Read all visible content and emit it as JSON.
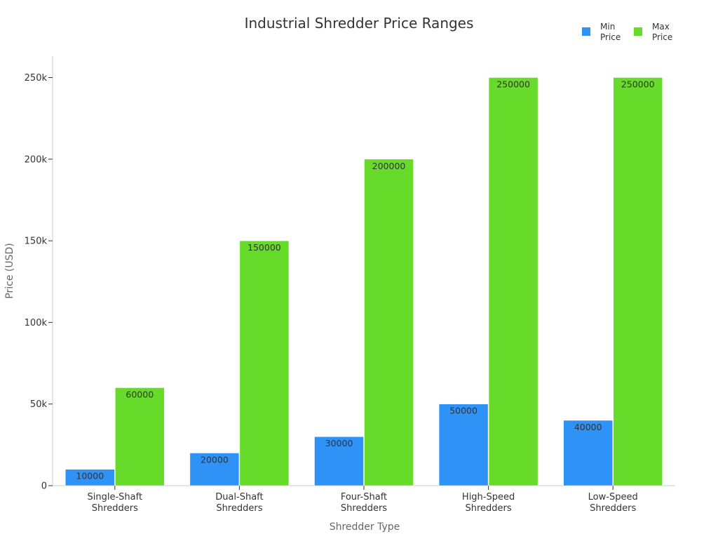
{
  "chart_data": {
    "type": "bar",
    "title": "Industrial Shredder Price Ranges",
    "xlabel": "Shredder Type",
    "ylabel": "Price (USD)",
    "categories": [
      [
        "Single-Shaft",
        "Shredders"
      ],
      [
        "Dual-Shaft",
        "Shredders"
      ],
      [
        "Four-Shaft",
        "Shredders"
      ],
      [
        "High-Speed",
        "Shredders"
      ],
      [
        "Low-Speed",
        "Shredders"
      ]
    ],
    "series": [
      {
        "name": [
          "Min",
          "Price"
        ],
        "color": "#2f92f7",
        "values": [
          10000,
          20000,
          30000,
          50000,
          40000
        ]
      },
      {
        "name": [
          "Max",
          "Price"
        ],
        "color": "#66db2a",
        "values": [
          60000,
          150000,
          200000,
          250000,
          250000
        ]
      }
    ],
    "ylim": [
      0,
      260000
    ],
    "yticks": [
      {
        "value": 0,
        "label": "0"
      },
      {
        "value": 50000,
        "label": "50k"
      },
      {
        "value": 100000,
        "label": "100k"
      },
      {
        "value": 150000,
        "label": "150k"
      },
      {
        "value": 200000,
        "label": "200k"
      },
      {
        "value": 250000,
        "label": "250k"
      }
    ],
    "grid": false,
    "legend": "top-right",
    "data_labels": true
  }
}
